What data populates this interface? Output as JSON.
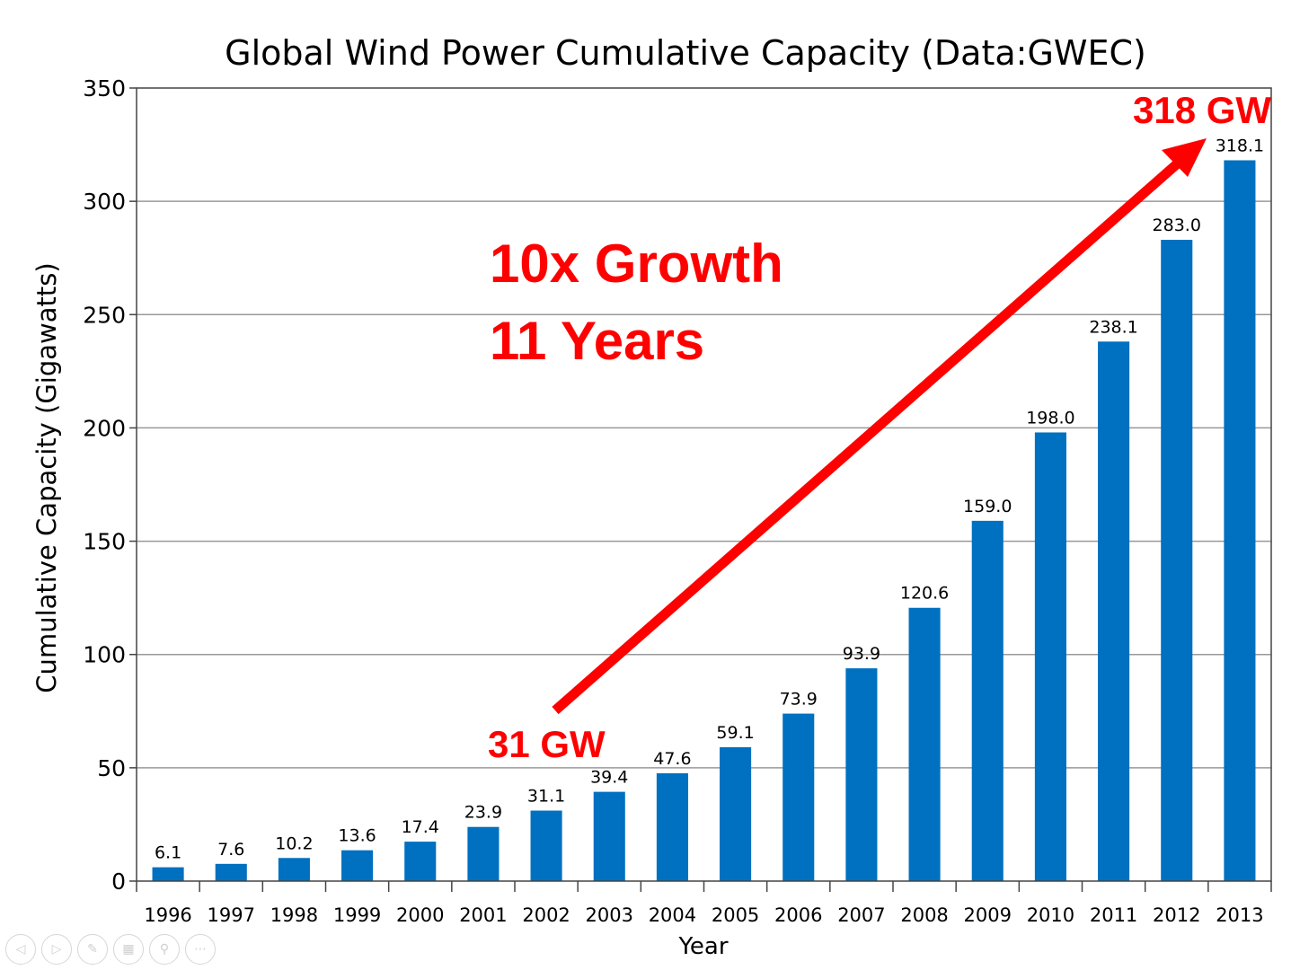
{
  "chart_data": {
    "type": "bar",
    "title": "Global Wind Power Cumulative Capacity (Data:GWEC)",
    "xlabel": "Year",
    "ylabel": "Cumulative Capacity (Gigawatts)",
    "ylim": [
      0,
      350
    ],
    "yticks": [
      0,
      50,
      100,
      150,
      200,
      250,
      300,
      350
    ],
    "grid": true,
    "categories": [
      "1996",
      "1997",
      "1998",
      "1999",
      "2000",
      "2001",
      "2002",
      "2003",
      "2004",
      "2005",
      "2006",
      "2007",
      "2008",
      "2009",
      "2010",
      "2011",
      "2012",
      "2013"
    ],
    "values": [
      6.1,
      7.6,
      10.2,
      13.6,
      17.4,
      23.9,
      31.1,
      39.4,
      47.6,
      59.1,
      73.9,
      93.9,
      120.6,
      159.0,
      198.0,
      238.1,
      283.0,
      318.1
    ],
    "data_labels": [
      "6.1",
      "7.6",
      "10.2",
      "13.6",
      "17.4",
      "23.9",
      "31.1",
      "39.4",
      "47.6",
      "59.1",
      "73.9",
      "93.9",
      "120.6",
      "159.0",
      "198.0",
      "238.1",
      "283.0",
      "318.1"
    ],
    "bar_color": "#0070c0",
    "annotations": {
      "growth_line1": "10x Growth",
      "growth_line2": "11 Years",
      "start_label": "31 GW",
      "end_label": "318 GW",
      "color": "#ff0000"
    }
  },
  "controls": [
    {
      "name": "previous-slide",
      "icon": "left-arrow-icon"
    },
    {
      "name": "next-slide",
      "icon": "right-arrow-icon"
    },
    {
      "name": "pen",
      "icon": "pen-icon"
    },
    {
      "name": "all-slides",
      "icon": "slides-grid-icon"
    },
    {
      "name": "zoom",
      "icon": "magnifier-icon"
    },
    {
      "name": "more-options",
      "icon": "ellipsis-icon"
    }
  ]
}
